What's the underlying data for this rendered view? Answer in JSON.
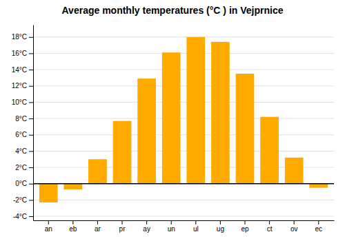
{
  "chart_data": {
    "type": "bar",
    "title": "Average monthly temperatures (°C ) in Vejprnice",
    "categories": [
      "an",
      "eb",
      "ar",
      "pr",
      "ay",
      "un",
      "ul",
      "ug",
      "ep",
      "ct",
      "ov",
      "ec"
    ],
    "values": [
      -2.3,
      -0.7,
      3.0,
      7.7,
      12.9,
      16.1,
      18.0,
      17.4,
      13.5,
      8.2,
      3.2,
      -0.5
    ],
    "color": "#FFAA00",
    "ylim": [
      -4.5,
      19.5
    ],
    "yticks": [
      {
        "value": -4,
        "label": "-4°C"
      },
      {
        "value": -2,
        "label": "-2°C"
      },
      {
        "value": 0,
        "label": "0°C"
      },
      {
        "value": 2,
        "label": "2°C"
      },
      {
        "value": 4,
        "label": "4°C"
      },
      {
        "value": 6,
        "label": "6°C"
      },
      {
        "value": 8,
        "label": "8°C"
      },
      {
        "value": 10,
        "label": "10°C"
      },
      {
        "value": 12,
        "label": "12°C"
      },
      {
        "value": 14,
        "label": "14°C"
      },
      {
        "value": 16,
        "label": "16°C"
      },
      {
        "value": 18,
        "label": "18°C"
      }
    ],
    "grid": true
  }
}
